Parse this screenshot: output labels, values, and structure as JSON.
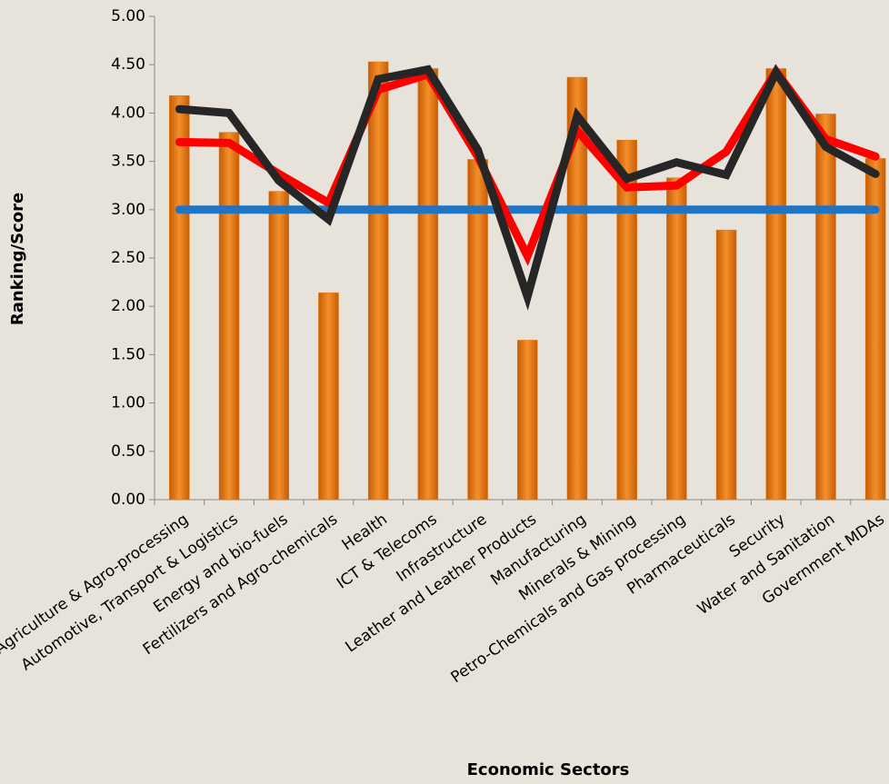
{
  "chart_data": {
    "type": "bar",
    "x_label": "Economic Sectors",
    "y_label": "Ranking/Score",
    "categories": [
      "Agriculture & Agro-processing",
      "Automotive, Transport & Logistics",
      "Energy and bio-fuels",
      "Fertilizers and Agro-chemicals",
      "Health",
      "ICT & Telecoms",
      "Infrastructure",
      "Leather and Leather Products",
      "Manufacturing",
      "Minerals & Mining",
      "Petro-Chemicals and Gas processing",
      "Pharmaceuticals",
      "Security",
      "Water and Sanitation",
      "Government MDAs"
    ],
    "series": [
      {
        "type": "bar",
        "color": "#e8770e",
        "values": [
          4.18,
          3.8,
          3.19,
          2.14,
          4.53,
          4.46,
          3.52,
          1.65,
          4.37,
          3.72,
          3.33,
          2.79,
          4.46,
          3.99,
          3.53
        ]
      },
      {
        "type": "line",
        "color": "#1f74c4",
        "values": [
          3.0,
          3.0,
          3.0,
          3.0,
          3.0,
          3.0,
          3.0,
          3.0,
          3.0,
          3.0,
          3.0,
          3.0,
          3.0,
          3.0,
          3.0
        ]
      },
      {
        "type": "line",
        "color": "#ff0000",
        "values": [
          3.7,
          3.69,
          3.37,
          3.07,
          4.24,
          4.4,
          3.55,
          2.52,
          3.82,
          3.23,
          3.25,
          3.6,
          4.43,
          3.73,
          3.55
        ]
      },
      {
        "type": "line",
        "color": "#262626",
        "values": [
          4.04,
          4.0,
          3.3,
          2.9,
          4.35,
          4.45,
          3.62,
          2.1,
          3.97,
          3.32,
          3.49,
          3.36,
          4.42,
          3.65,
          3.37
        ]
      }
    ],
    "ylim": [
      0,
      5
    ],
    "yticks": [
      {
        "value": 0,
        "label": "0.00"
      },
      {
        "value": 0.5,
        "label": "0.50"
      },
      {
        "value": 1,
        "label": "1.00"
      },
      {
        "value": 1.5,
        "label": "1.50"
      },
      {
        "value": 2,
        "label": "2.00"
      },
      {
        "value": 2.5,
        "label": "2.50"
      },
      {
        "value": 3,
        "label": "3.00"
      },
      {
        "value": 3.5,
        "label": "3.50"
      },
      {
        "value": 4,
        "label": "4.00"
      },
      {
        "value": 4.5,
        "label": "4.50"
      },
      {
        "value": 5,
        "label": "5.00"
      }
    ]
  }
}
